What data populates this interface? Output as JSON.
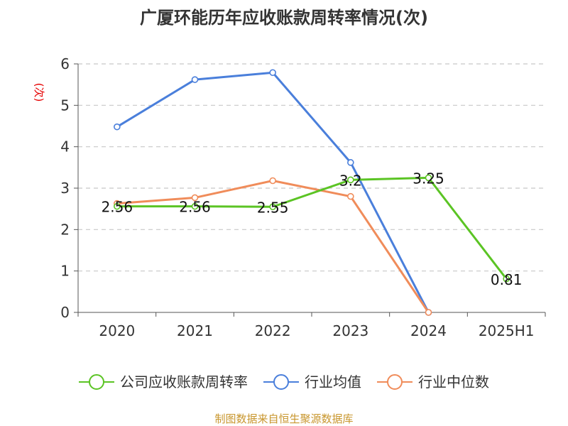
{
  "chart_data": {
    "type": "line",
    "title": "广厦环能历年应收账款周转率情况(次)",
    "ylabel": "(次)",
    "xlabel": "",
    "categories": [
      "2020",
      "2021",
      "2022",
      "2023",
      "2024",
      "2025H1"
    ],
    "ylim": [
      0,
      6
    ],
    "yticks": [
      "0",
      "1",
      "2",
      "3",
      "4",
      "5",
      "6"
    ],
    "grid": true,
    "legend_position": "bottom",
    "series": [
      {
        "name": "公司应收账款周转率",
        "color": "#5bc424",
        "values": [
          2.56,
          2.56,
          2.55,
          3.2,
          3.25,
          0.81
        ],
        "labels": [
          "2.56",
          "2.56",
          "2.55",
          "3.2",
          "3.25",
          "0.81"
        ]
      },
      {
        "name": "行业均值",
        "color": "#4a7fdb",
        "values": [
          4.48,
          5.62,
          5.79,
          3.62,
          0,
          null
        ],
        "labels": []
      },
      {
        "name": "行业中位数",
        "color": "#f08c5a",
        "values": [
          2.63,
          2.77,
          3.18,
          2.8,
          0,
          null
        ],
        "labels": []
      }
    ]
  },
  "footer": {
    "source": "制图数据来自恒生聚源数据库"
  }
}
